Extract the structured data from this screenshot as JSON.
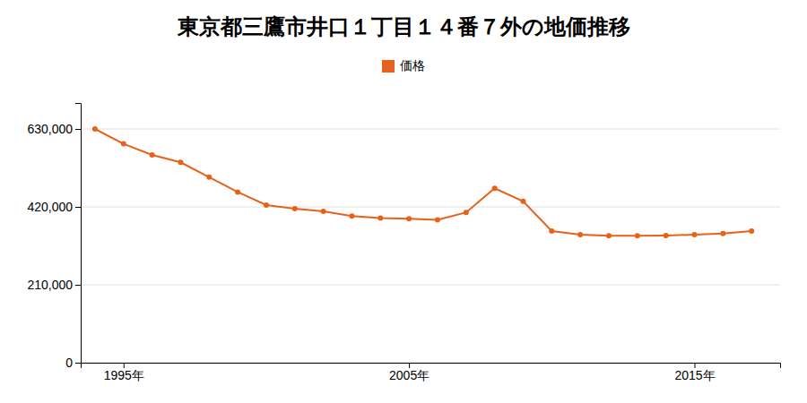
{
  "chart_data": {
    "type": "line",
    "title": "東京都三鷹市井口１丁目１４番７外の地価推移",
    "x": [
      1994,
      1995,
      1996,
      1997,
      1998,
      1999,
      2000,
      2001,
      2002,
      2003,
      2004,
      2005,
      2006,
      2007,
      2008,
      2009,
      2010,
      2011,
      2012,
      2013,
      2014,
      2015,
      2016,
      2017
    ],
    "series": [
      {
        "name": "価格",
        "color": "#e8611a",
        "marker": "circle",
        "values": [
          630000,
          590000,
          560000,
          540000,
          500000,
          460000,
          425000,
          415000,
          408000,
          395000,
          390000,
          388000,
          385000,
          405000,
          470000,
          435000,
          355000,
          345000,
          342000,
          342000,
          343000,
          345000,
          348000,
          355000
        ]
      }
    ],
    "xlim": [
      1993.5,
      2018
    ],
    "xticks": [
      {
        "value": 1995,
        "label": "1995年"
      },
      {
        "value": 2005,
        "label": "2005年"
      },
      {
        "value": 2015,
        "label": "2015年"
      }
    ],
    "ylim": [
      0,
      700000
    ],
    "yticks": [
      0,
      {
        "value": 210000,
        "label": "210,000"
      },
      {
        "value": 420000,
        "label": "420,000"
      },
      {
        "value": 630000,
        "label": "630,000"
      }
    ],
    "grid": "y",
    "legend": "top"
  }
}
